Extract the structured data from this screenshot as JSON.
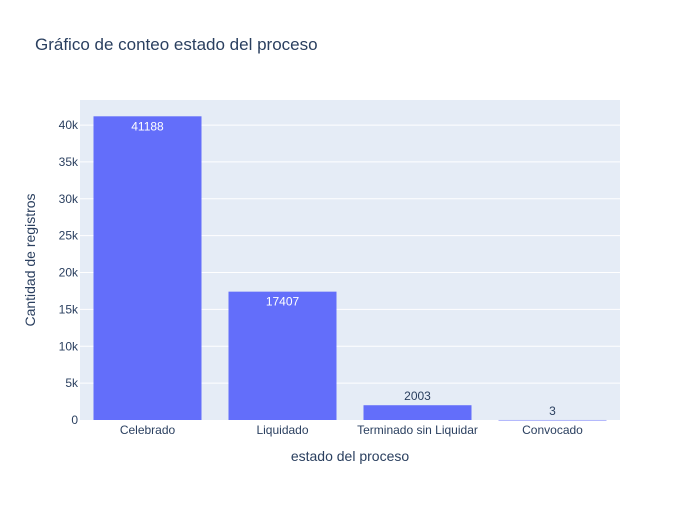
{
  "chart_data": {
    "type": "bar",
    "title": "Gráfico de conteo estado del proceso",
    "xlabel": "estado del proceso",
    "ylabel": "Cantidad de registros",
    "categories": [
      "Celebrado",
      "Liquidado",
      "Terminado sin Liquidar",
      "Convocado"
    ],
    "values": [
      41188,
      17407,
      2003,
      3
    ],
    "data_labels": [
      "41188",
      "17407",
      "2003",
      "3"
    ],
    "ylim": [
      0,
      43400
    ],
    "yticks": [
      0,
      5000,
      10000,
      15000,
      20000,
      25000,
      30000,
      35000,
      40000
    ],
    "ytick_labels": [
      "0",
      "5k",
      "10k",
      "15k",
      "20k",
      "25k",
      "30k",
      "35k",
      "40k"
    ],
    "grid": true,
    "colors": {
      "bar": "#636efa",
      "plot_bg": "#e5ecf6",
      "grid": "#ffffff",
      "text": "#2a3f5f",
      "inside_label": "#ffffff"
    }
  }
}
